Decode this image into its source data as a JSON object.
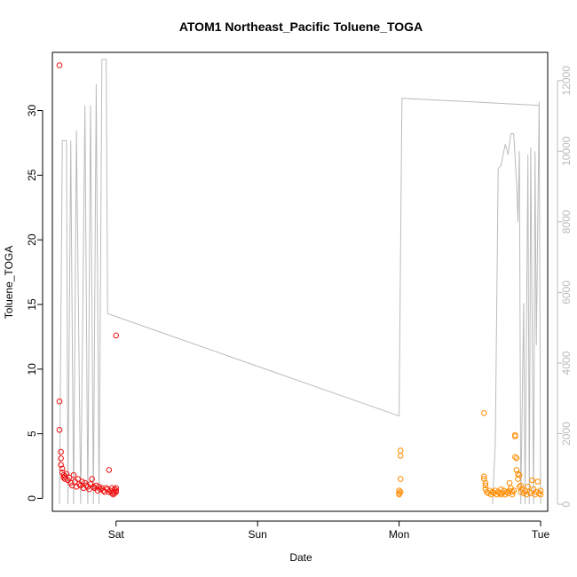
{
  "chart_data": {
    "type": "scatter",
    "title": "ATOM1 Northeast_Pacific Toluene_TOGA",
    "xlabel": "Date",
    "ylabel": "Toluene_TOGA",
    "x_ticks": [
      {
        "value": 1.0,
        "label": "Sat"
      },
      {
        "value": 2.0,
        "label": "Sun"
      },
      {
        "value": 3.0,
        "label": "Mon"
      },
      {
        "value": 4.0,
        "label": "Tue"
      }
    ],
    "xlim": [
      0.55,
      4.05
    ],
    "ylim": [
      -1,
      34.5
    ],
    "y_ticks": [
      0,
      5,
      10,
      15,
      20,
      25,
      30
    ],
    "y2lim": [
      -200,
      12800
    ],
    "y2_ticks": [
      0,
      2000,
      4000,
      6000,
      8000,
      10000,
      12000
    ],
    "colors": {
      "series1": "#ee1111",
      "series2": "#ff8c00",
      "altitude": "#bbbbbb",
      "axis": "#000000",
      "axis_right": "#bbbbbb"
    },
    "series": [
      {
        "color": "#ee1111",
        "points": [
          [
            0.6,
            33.5
          ],
          [
            0.6,
            7.5
          ],
          [
            0.6,
            5.3
          ],
          [
            0.61,
            3.6
          ],
          [
            0.61,
            3.1
          ],
          [
            0.61,
            2.6
          ],
          [
            0.62,
            2.3
          ],
          [
            0.62,
            2.0
          ],
          [
            0.63,
            1.8
          ],
          [
            0.63,
            1.6
          ],
          [
            0.64,
            1.7
          ],
          [
            0.64,
            1.5
          ],
          [
            0.65,
            1.9
          ],
          [
            0.66,
            1.4
          ],
          [
            0.67,
            1.6
          ],
          [
            0.68,
            1.2
          ],
          [
            0.69,
            1.0
          ],
          [
            0.7,
            1.8
          ],
          [
            0.71,
            1.3
          ],
          [
            0.72,
            0.9
          ],
          [
            0.73,
            1.5
          ],
          [
            0.74,
            1.1
          ],
          [
            0.75,
            1.0
          ],
          [
            0.76,
            1.3
          ],
          [
            0.77,
            0.8
          ],
          [
            0.78,
            1.2
          ],
          [
            0.79,
            1.0
          ],
          [
            0.8,
            0.9
          ],
          [
            0.81,
            0.7
          ],
          [
            0.82,
            1.1
          ],
          [
            0.83,
            1.5
          ],
          [
            0.84,
            0.9
          ],
          [
            0.85,
            0.8
          ],
          [
            0.86,
            1.0
          ],
          [
            0.87,
            0.6
          ],
          [
            0.88,
            0.9
          ],
          [
            0.89,
            0.7
          ],
          [
            0.9,
            0.8
          ],
          [
            0.91,
            0.6
          ],
          [
            0.92,
            0.5
          ],
          [
            0.93,
            0.8
          ],
          [
            0.94,
            0.7
          ],
          [
            0.95,
            2.2
          ],
          [
            0.95,
            0.5
          ],
          [
            0.96,
            0.6
          ],
          [
            0.97,
            0.8
          ],
          [
            0.98,
            0.5
          ],
          [
            0.99,
            0.4
          ],
          [
            1.0,
            0.6
          ],
          [
            1.0,
            0.5
          ],
          [
            1.0,
            0.8
          ],
          [
            0.99,
            0.7
          ],
          [
            0.98,
            0.3
          ],
          [
            0.97,
            0.4
          ],
          [
            1.0,
            12.6
          ]
        ]
      },
      {
        "color": "#ff8c00",
        "points": [
          [
            3.0,
            0.3
          ],
          [
            3.0,
            0.4
          ],
          [
            3.0,
            0.6
          ],
          [
            3.01,
            3.3
          ],
          [
            3.01,
            3.7
          ],
          [
            3.01,
            1.5
          ],
          [
            3.01,
            0.5
          ],
          [
            3.6,
            6.6
          ],
          [
            3.6,
            1.7
          ],
          [
            3.6,
            1.5
          ],
          [
            3.61,
            1.2
          ],
          [
            3.61,
            1.0
          ],
          [
            3.61,
            0.7
          ],
          [
            3.62,
            0.5
          ],
          [
            3.63,
            0.4
          ],
          [
            3.64,
            0.6
          ],
          [
            3.65,
            0.3
          ],
          [
            3.66,
            0.5
          ],
          [
            3.67,
            0.4
          ],
          [
            3.68,
            0.6
          ],
          [
            3.69,
            0.3
          ],
          [
            3.7,
            0.5
          ],
          [
            3.71,
            0.4
          ],
          [
            3.72,
            0.7
          ],
          [
            3.73,
            0.4
          ],
          [
            3.74,
            0.6
          ],
          [
            3.75,
            0.3
          ],
          [
            3.76,
            0.5
          ],
          [
            3.77,
            0.4
          ],
          [
            3.78,
            0.6
          ],
          [
            3.79,
            0.8
          ],
          [
            3.8,
            0.5
          ],
          [
            3.8,
            0.3
          ],
          [
            3.81,
            0.6
          ],
          [
            3.82,
            4.8
          ],
          [
            3.82,
            4.9
          ],
          [
            3.82,
            3.2
          ],
          [
            3.83,
            3.1
          ],
          [
            3.83,
            2.2
          ],
          [
            3.84,
            1.9
          ],
          [
            3.84,
            1.5
          ],
          [
            3.85,
            1.8
          ],
          [
            3.85,
            0.9
          ],
          [
            3.86,
            0.5
          ],
          [
            3.87,
            0.7
          ],
          [
            3.88,
            0.4
          ],
          [
            3.89,
            0.6
          ],
          [
            3.9,
            0.3
          ],
          [
            3.91,
            0.9
          ],
          [
            3.92,
            0.5
          ],
          [
            3.93,
            0.4
          ],
          [
            3.94,
            1.4
          ],
          [
            3.95,
            0.7
          ],
          [
            3.96,
            0.3
          ],
          [
            3.97,
            0.5
          ],
          [
            3.98,
            1.3
          ],
          [
            3.99,
            0.4
          ],
          [
            4.0,
            0.6
          ],
          [
            4.0,
            0.3
          ],
          [
            3.86,
            1.0
          ],
          [
            3.72,
            0.3
          ],
          [
            3.78,
            1.2
          ]
        ]
      }
    ],
    "altitude": {
      "color": "#bbbbbb",
      "points": [
        [
          0.6,
          0
        ],
        [
          0.62,
          10300
        ],
        [
          0.65,
          10300
        ],
        [
          0.66,
          0
        ],
        [
          0.68,
          10300
        ],
        [
          0.7,
          0
        ],
        [
          0.72,
          10600
        ],
        [
          0.75,
          0
        ],
        [
          0.78,
          11300
        ],
        [
          0.8,
          0
        ],
        [
          0.82,
          11300
        ],
        [
          0.84,
          0
        ],
        [
          0.86,
          11900
        ],
        [
          0.88,
          0
        ],
        [
          0.9,
          12600
        ],
        [
          0.93,
          12600
        ],
        [
          0.94,
          5400
        ],
        [
          3.0,
          2500
        ],
        [
          3.01,
          7100
        ],
        [
          3.02,
          11500
        ],
        [
          3.99,
          11300
        ],
        [
          4.0,
          0
        ],
        [
          3.99,
          11400
        ],
        [
          3.97,
          4500
        ],
        [
          3.96,
          10000
        ],
        [
          3.95,
          0
        ],
        [
          3.93,
          10100
        ],
        [
          3.92,
          0
        ],
        [
          3.91,
          9900
        ],
        [
          3.89,
          0
        ],
        [
          3.88,
          5700
        ],
        [
          3.86,
          0
        ],
        [
          3.85,
          10000
        ],
        [
          3.84,
          8000
        ],
        [
          3.83,
          9100
        ],
        [
          3.81,
          10500
        ],
        [
          3.79,
          10500
        ],
        [
          3.77,
          9900
        ],
        [
          3.75,
          10200
        ],
        [
          3.72,
          9600
        ],
        [
          3.7,
          9500
        ],
        [
          3.68,
          1800
        ],
        [
          3.66,
          0
        ]
      ]
    }
  }
}
